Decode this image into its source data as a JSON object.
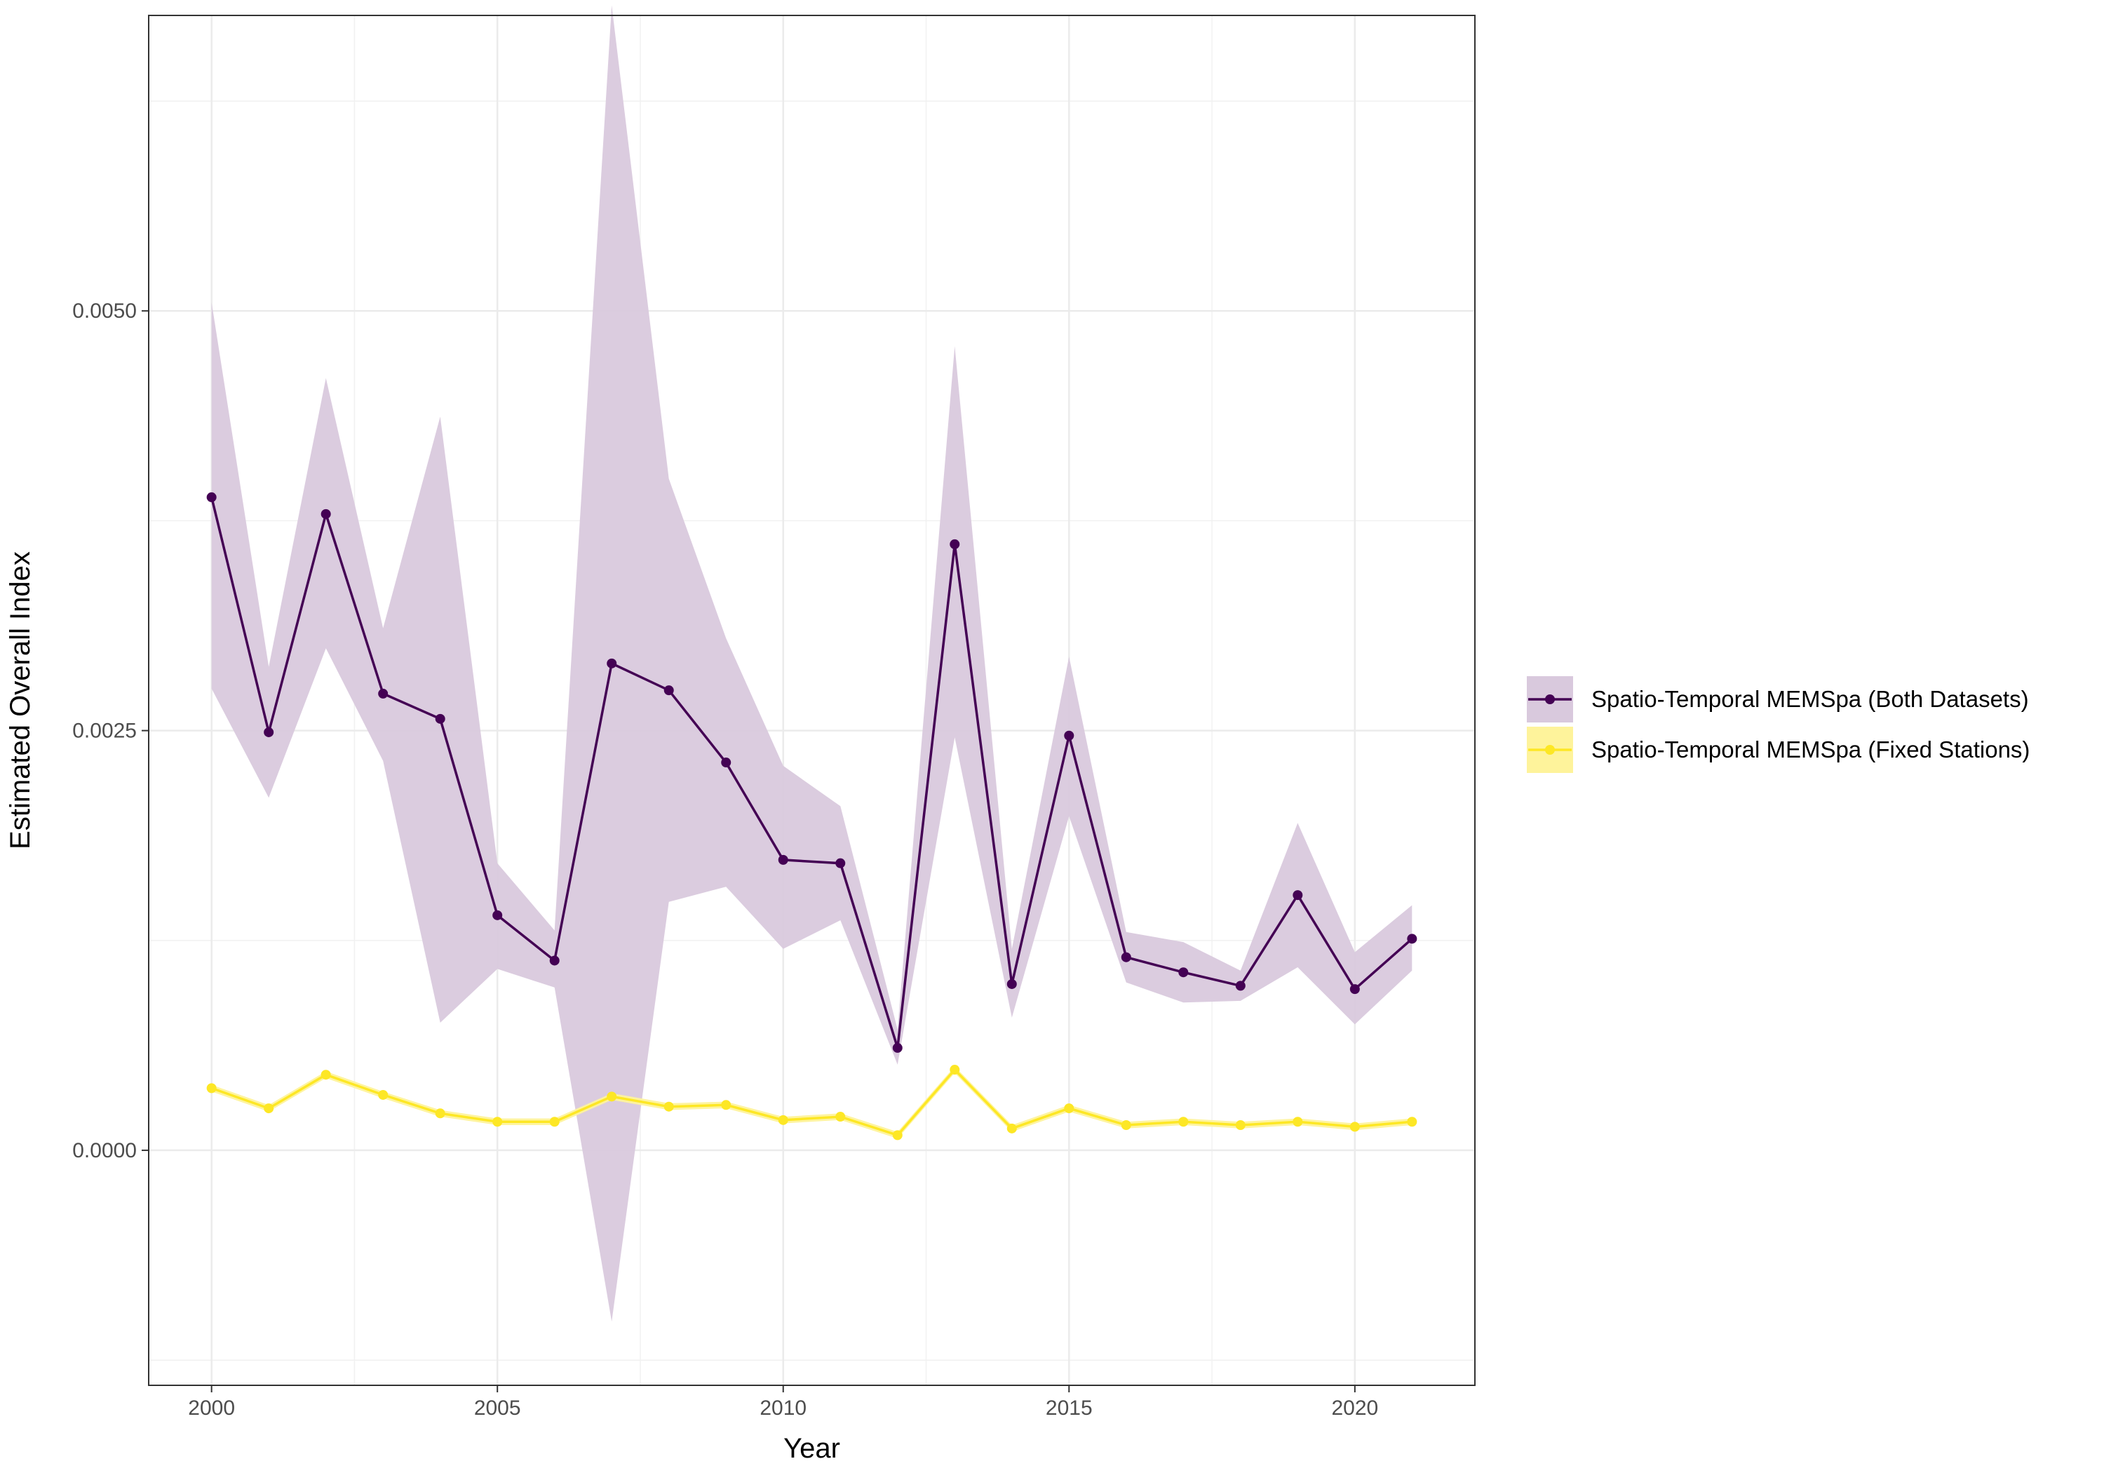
{
  "chart_data": {
    "type": "line",
    "title": "",
    "xlabel": "Year",
    "ylabel": "Estimated Overall Index",
    "xlim": [
      1998.9,
      2022.1
    ],
    "ylim": [
      -0.0014,
      0.00676
    ],
    "x_ticks": [
      2000,
      2005,
      2010,
      2015,
      2020
    ],
    "x_tick_labels": [
      "2000",
      "2005",
      "2010",
      "2015",
      "2020"
    ],
    "y_ticks": [
      0.0,
      0.0025,
      0.005
    ],
    "y_tick_labels": [
      "0.0000",
      "0.0025",
      "0.0050"
    ],
    "grid": true,
    "legend_position": "right",
    "x": [
      2000,
      2001,
      2002,
      2003,
      2004,
      2005,
      2006,
      2007,
      2008,
      2009,
      2010,
      2011,
      2012,
      2013,
      2014,
      2015,
      2016,
      2017,
      2018,
      2019,
      2020,
      2021
    ],
    "series": [
      {
        "name": "Spatio-Temporal MEMSpa (Both Datasets)",
        "color": "#440154",
        "band_color": "#d9c9dd",
        "values": [
          0.00389,
          0.00249,
          0.00379,
          0.00272,
          0.00257,
          0.0014,
          0.00113,
          0.0029,
          0.00274,
          0.00231,
          0.00173,
          0.00171,
          0.00061,
          0.00361,
          0.00099,
          0.00247,
          0.00115,
          0.00106,
          0.00098,
          0.00152,
          0.00096,
          0.00126
        ],
        "lower": [
          0.00275,
          0.0021,
          0.00299,
          0.00232,
          0.00076,
          0.00108,
          0.00097,
          -0.00102,
          0.00148,
          0.00157,
          0.0012,
          0.00137,
          0.00051,
          0.00246,
          0.00079,
          0.00199,
          0.001,
          0.00088,
          0.00089,
          0.00109,
          0.00075,
          0.00107
        ],
        "upper": [
          0.00505,
          0.00288,
          0.0046,
          0.00311,
          0.00437,
          0.00171,
          0.00131,
          0.00682,
          0.004,
          0.00305,
          0.00229,
          0.00205,
          0.00072,
          0.00479,
          0.0012,
          0.00294,
          0.0013,
          0.00124,
          0.00107,
          0.00195,
          0.00118,
          0.00146
        ]
      },
      {
        "name": "Spatio-Temporal MEMSpa (Fixed Stations)",
        "color": "#fde725",
        "band_color": "#fef39b",
        "values": [
          0.00037,
          0.00025,
          0.00045,
          0.00033,
          0.00022,
          0.00017,
          0.00017,
          0.00032,
          0.00026,
          0.00027,
          0.00018,
          0.0002,
          9e-05,
          0.00048,
          0.00013,
          0.00025,
          0.00015,
          0.00017,
          0.00015,
          0.00017,
          0.00014,
          0.00017
        ],
        "lower": [
          0.00035,
          0.00023,
          0.00043,
          0.00031,
          0.0002,
          0.00015,
          0.00015,
          0.0003,
          0.00024,
          0.00025,
          0.00016,
          0.00018,
          7e-05,
          0.00046,
          0.00011,
          0.00023,
          0.00013,
          0.00015,
          0.00013,
          0.00015,
          0.00012,
          0.00015
        ],
        "upper": [
          0.00039,
          0.00027,
          0.00047,
          0.00035,
          0.00024,
          0.00019,
          0.00019,
          0.00034,
          0.00028,
          0.00029,
          0.0002,
          0.00022,
          0.00011,
          0.0005,
          0.00015,
          0.00027,
          0.00017,
          0.00019,
          0.00017,
          0.00019,
          0.00016,
          0.00019
        ]
      }
    ]
  }
}
